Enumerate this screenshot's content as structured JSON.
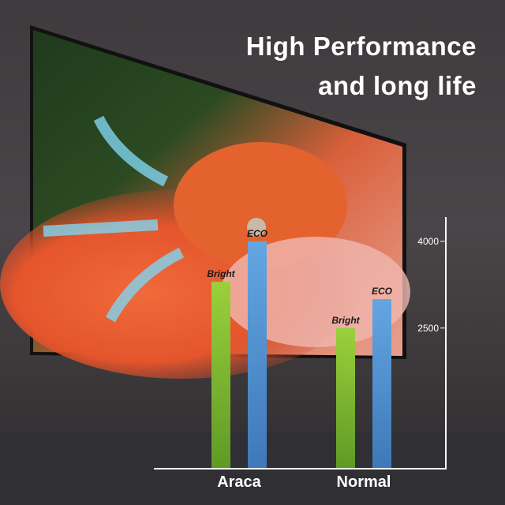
{
  "headline": {
    "line1": "High Performance",
    "line2": "and long life"
  },
  "chart_data": {
    "type": "bar",
    "categories": [
      "Araca",
      "Normal"
    ],
    "series": [
      {
        "name": "Bright",
        "values": [
          3300,
          2500
        ],
        "color": "#7cb82f"
      },
      {
        "name": "ECO",
        "values": [
          4000,
          3000
        ],
        "color": "#4f8fd0"
      }
    ],
    "yticks": [
      2500,
      4000
    ],
    "ylim": [
      0,
      4400
    ],
    "title": "",
    "xlabel": "",
    "ylabel": "",
    "grid": false
  }
}
